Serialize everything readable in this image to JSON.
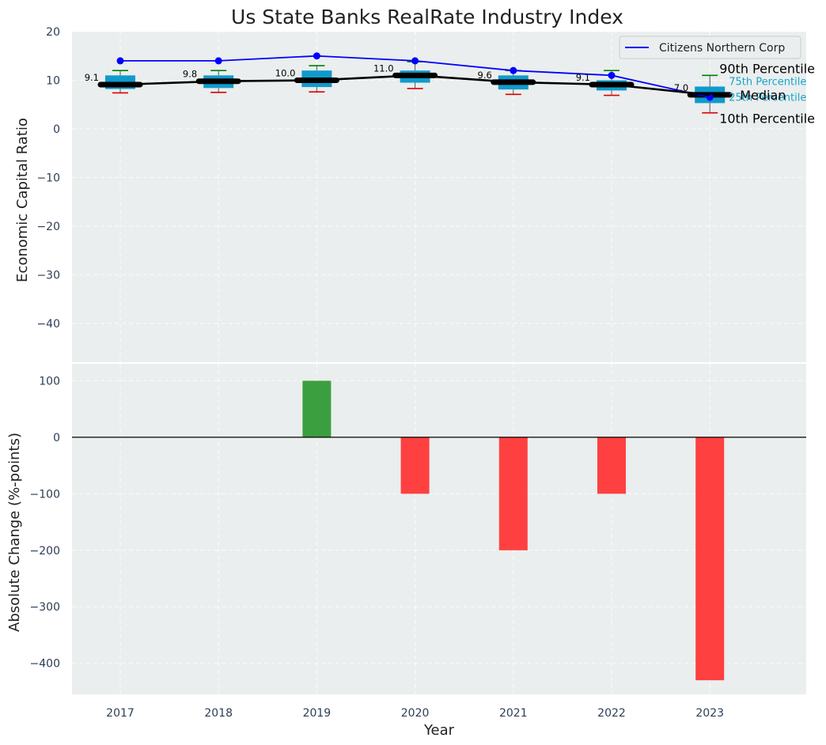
{
  "chart_data": [
    {
      "type": "box",
      "title": "Us State Banks RealRate Industry Index",
      "ylabel": "Economic Capital Ratio",
      "xlabel": "",
      "ylim": [
        -48,
        20
      ],
      "yticks": [
        20,
        10,
        0,
        -10,
        -20,
        -30,
        -40
      ],
      "categories": [
        "2017",
        "2018",
        "2019",
        "2020",
        "2021",
        "2022",
        "2023"
      ],
      "grid": true,
      "percentiles": {
        "p10": [
          7.4,
          7.5,
          7.6,
          8.3,
          7.1,
          6.9,
          3.3
        ],
        "p25": [
          8.2,
          8.4,
          8.6,
          9.5,
          8.1,
          7.9,
          5.3
        ],
        "median": [
          9.1,
          9.8,
          10.0,
          11.0,
          9.6,
          9.1,
          7.0
        ],
        "p75": [
          11.0,
          11.0,
          12.0,
          12.0,
          11.0,
          10.0,
          8.7
        ],
        "p90": [
          12.0,
          12.0,
          13.0,
          13.8,
          12.0,
          12.0,
          11.0
        ]
      },
      "median_labels": [
        "9.1",
        "9.8",
        "10.0",
        "11.0",
        "9.6",
        "9.1",
        "7.0"
      ],
      "series": [
        {
          "name": "Citizens Northern Corp",
          "values": [
            14,
            14,
            15,
            14,
            12,
            11,
            6.5
          ],
          "color": "#0000ff"
        },
        {
          "name": "Median",
          "values": [
            9.1,
            9.8,
            10.0,
            11.0,
            9.6,
            9.1,
            7.0
          ],
          "color": "#000000"
        }
      ],
      "legend": {
        "position": "top-right",
        "entries": [
          "Citizens Northern Corp"
        ]
      },
      "annotations": {
        "p90": "90th Percentile",
        "p75": "75th Percentile",
        "median": "Median",
        "p25": "25th Percentile",
        "p10": "10th Percentile"
      },
      "colors": {
        "box": "#0f9bcc",
        "whisker_top": "#008000",
        "whisker_bottom": "#e00000",
        "median_bar": "#000000",
        "background": "#eaeeee"
      }
    },
    {
      "type": "bar",
      "ylabel": "Absolute Change (%-points)",
      "xlabel": "Year",
      "ylim": [
        -455,
        130
      ],
      "yticks": [
        100,
        0,
        -100,
        -200,
        -300,
        -400
      ],
      "categories": [
        "2017",
        "2018",
        "2019",
        "2020",
        "2021",
        "2022",
        "2023"
      ],
      "values": [
        0,
        0,
        100,
        -100,
        -200,
        -100,
        -430
      ],
      "grid": true,
      "colors": {
        "positive": "#2e9932",
        "negative": "#ff3333",
        "zero_line": "#000000",
        "background": "#eaeeee"
      }
    }
  ]
}
